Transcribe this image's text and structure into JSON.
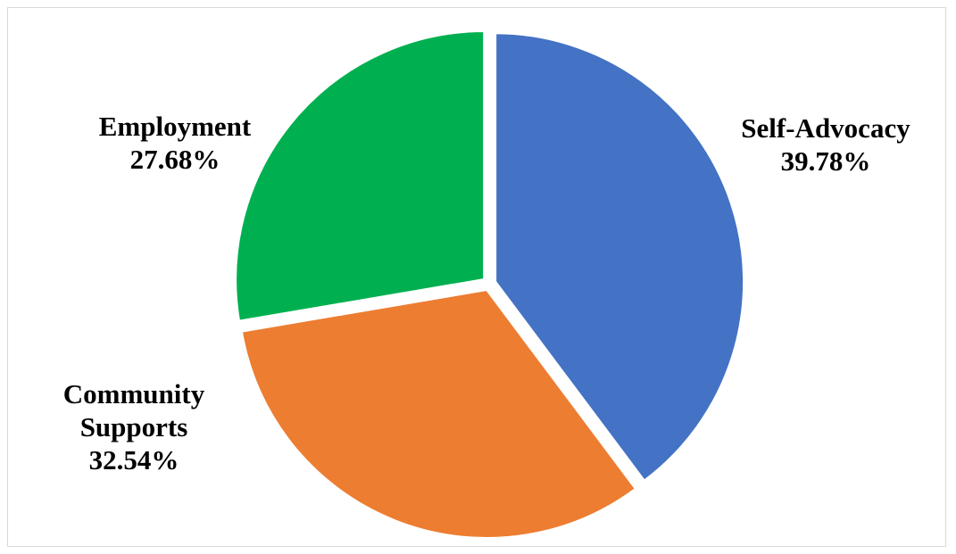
{
  "chart_data": {
    "type": "pie",
    "title": "",
    "slices": [
      {
        "label": [
          "Self-Advocacy"
        ],
        "value_label": "39.78%",
        "value": 39.78,
        "color": "#4472C4",
        "label_side": "right"
      },
      {
        "label": [
          "Community",
          "Supports"
        ],
        "value_label": "32.54%",
        "value": 32.54,
        "color": "#ED7D31",
        "label_side": "left"
      },
      {
        "label": [
          "Employment"
        ],
        "value_label": "27.68%",
        "value": 27.68,
        "color": "#00B050",
        "label_side": "left"
      }
    ],
    "start_angle_deg": 0,
    "direction": "clockwise",
    "legend": "none",
    "exploded": true
  }
}
